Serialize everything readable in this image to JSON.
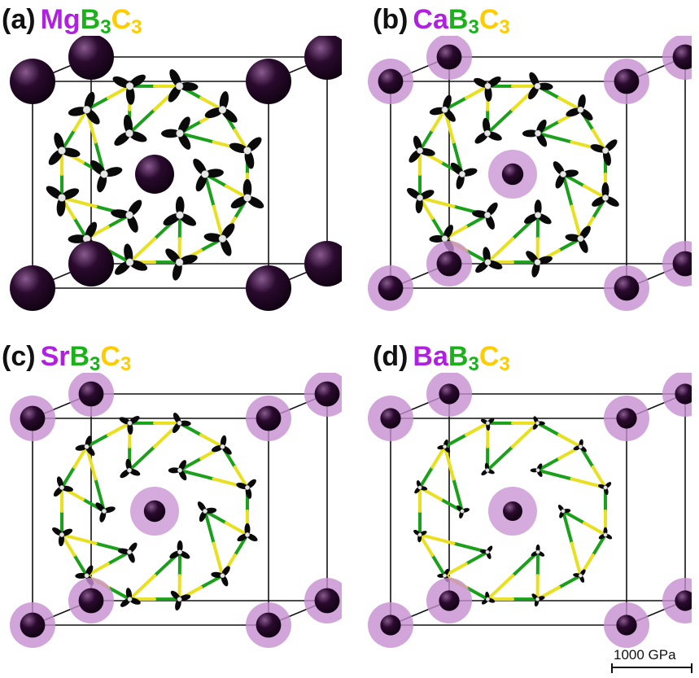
{
  "colors": {
    "metal_label": "#b020e0",
    "boron_label": "#19b319",
    "carbon_label": "#ffcc00",
    "metal_atom": "#2a0a2e",
    "metal_halo": "#c58fd0",
    "boron_bond": "#1aa01a",
    "carbon_bond": "#e8e020",
    "stress_lobe": "#0a0a0a",
    "stress_lobe_light": "#e6e6e6"
  },
  "panels": [
    {
      "tag": "(a)",
      "metal": "Mg",
      "b": "B",
      "b_sub": "3",
      "c": "C",
      "c_sub": "3",
      "lobe_scale": 1.0,
      "halo": 0.0,
      "atom": 1.0
    },
    {
      "tag": "(b)",
      "metal": "Ca",
      "b": "B",
      "b_sub": "3",
      "c": "C",
      "c_sub": "3",
      "lobe_scale": 0.82,
      "halo": 1.0,
      "atom": 0.55
    },
    {
      "tag": "(c)",
      "metal": "Sr",
      "b": "B",
      "b_sub": "3",
      "c": "C",
      "c_sub": "3",
      "lobe_scale": 0.6,
      "halo": 1.0,
      "atom": 0.55
    },
    {
      "tag": "(d)",
      "metal": "Ba",
      "b": "B",
      "b_sub": "3",
      "c": "C",
      "c_sub": "3",
      "lobe_scale": 0.38,
      "halo": 1.0,
      "atom": 0.45
    }
  ],
  "scale_bar": {
    "label": "1000 GPa"
  }
}
